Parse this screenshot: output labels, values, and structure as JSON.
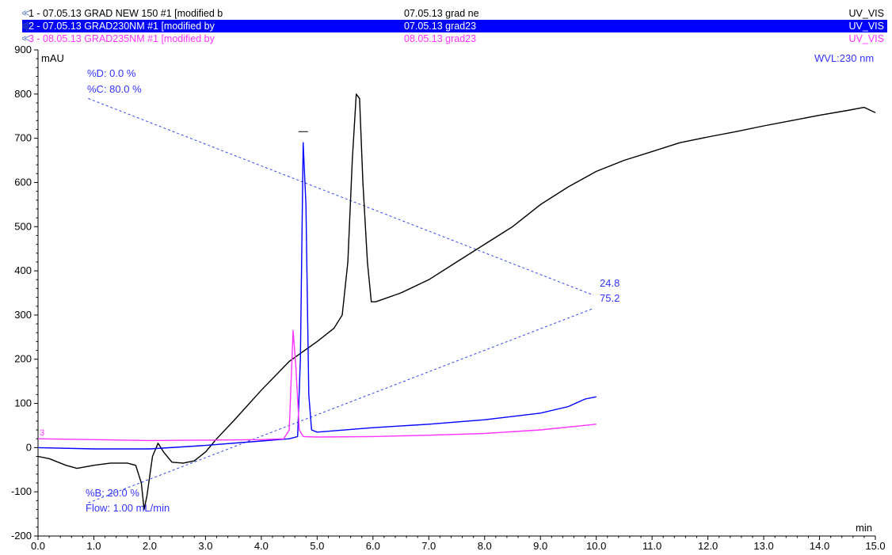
{
  "legend": [
    {
      "label": "1 - 07.05.13 GRAD NEW 150 #1 [modified b",
      "name": "07.05.13 grad ne",
      "detector": "UV_VIS",
      "color": "#000000"
    },
    {
      "label": "2 - 07.05.13 GRAD230NM #1 [modified by",
      "name": "07.05.13 grad23",
      "detector": "UV_VIS",
      "color": "#0000ff"
    },
    {
      "label": "3 - 08.05.13 GRAD235NM #1 [modified by",
      "name": "08.05.13 grad23",
      "detector": "UV_VIS",
      "color": "#ff33ff"
    }
  ],
  "annotations": {
    "y_unit": "mAU",
    "x_unit": "min",
    "wavelength": "WVL:230 nm",
    "percent_d": "%D: 0.0 %",
    "percent_c": "%C: 80.0 %",
    "percent_b": "%B: 20.0 %",
    "flow": "Flow: 1.00 mL/min",
    "end_upper": "24.8",
    "end_lower": "75.2",
    "trace_label_left": "3"
  },
  "chart_data": {
    "type": "line",
    "xlabel": "min",
    "ylabel": "mAU",
    "xlim": [
      0,
      15
    ],
    "ylim": [
      -200,
      900
    ],
    "x_ticks": [
      "0.0",
      "1.0",
      "2.0",
      "3.0",
      "4.0",
      "5.0",
      "6.0",
      "7.0",
      "8.0",
      "9.0",
      "10.0",
      "11.0",
      "12.0",
      "13.0",
      "14.0",
      "15.0"
    ],
    "y_ticks": [
      "900",
      "800",
      "700",
      "600",
      "500",
      "400",
      "300",
      "200",
      "100",
      "0",
      "-100",
      "-200"
    ],
    "series": [
      {
        "name": "1 - 07.05.13 GRAD NEW 150 #1",
        "color": "#000000",
        "points": [
          [
            0,
            -20
          ],
          [
            0.2,
            -25
          ],
          [
            0.5,
            -40
          ],
          [
            0.7,
            -47
          ],
          [
            1.0,
            -40
          ],
          [
            1.3,
            -35
          ],
          [
            1.6,
            -35
          ],
          [
            1.75,
            -40
          ],
          [
            1.85,
            -80
          ],
          [
            1.9,
            -140
          ],
          [
            1.95,
            -110
          ],
          [
            2.05,
            -20
          ],
          [
            2.15,
            10
          ],
          [
            2.25,
            -10
          ],
          [
            2.4,
            -33
          ],
          [
            2.6,
            -35
          ],
          [
            2.8,
            -30
          ],
          [
            3.0,
            -10
          ],
          [
            3.2,
            20
          ],
          [
            3.5,
            60
          ],
          [
            4.0,
            130
          ],
          [
            4.5,
            195
          ],
          [
            5.0,
            240
          ],
          [
            5.3,
            270
          ],
          [
            5.45,
            300
          ],
          [
            5.55,
            420
          ],
          [
            5.63,
            650
          ],
          [
            5.7,
            800
          ],
          [
            5.76,
            790
          ],
          [
            5.82,
            600
          ],
          [
            5.9,
            420
          ],
          [
            5.97,
            330
          ],
          [
            6.05,
            330
          ],
          [
            6.5,
            350
          ],
          [
            7.0,
            380
          ],
          [
            7.5,
            420
          ],
          [
            8.0,
            460
          ],
          [
            8.5,
            500
          ],
          [
            9.0,
            550
          ],
          [
            9.5,
            590
          ],
          [
            10.0,
            625
          ],
          [
            10.5,
            650
          ],
          [
            11.0,
            670
          ],
          [
            11.5,
            690
          ],
          [
            12.0,
            703
          ],
          [
            12.5,
            715
          ],
          [
            13.0,
            728
          ],
          [
            13.5,
            740
          ],
          [
            14.0,
            752
          ],
          [
            14.5,
            763
          ],
          [
            14.8,
            770
          ],
          [
            15.0,
            758
          ]
        ]
      },
      {
        "name": "2 - 07.05.13 GRAD230NM #1",
        "color": "#0000ff",
        "points": [
          [
            0,
            0
          ],
          [
            1.0,
            -3
          ],
          [
            2.0,
            -3
          ],
          [
            3.0,
            5
          ],
          [
            4.0,
            15
          ],
          [
            4.5,
            20
          ],
          [
            4.65,
            25
          ],
          [
            4.7,
            200
          ],
          [
            4.75,
            690
          ],
          [
            4.8,
            550
          ],
          [
            4.85,
            120
          ],
          [
            4.9,
            40
          ],
          [
            5.0,
            35
          ],
          [
            6.0,
            45
          ],
          [
            7.0,
            53
          ],
          [
            8.0,
            63
          ],
          [
            9.0,
            78
          ],
          [
            9.5,
            93
          ],
          [
            9.8,
            110
          ],
          [
            10.0,
            115
          ]
        ]
      },
      {
        "name": "3 - 08.05.13 GRAD235NM #1",
        "color": "#ff33ff",
        "points": [
          [
            0,
            20
          ],
          [
            1.0,
            18
          ],
          [
            2.0,
            16
          ],
          [
            3.0,
            17
          ],
          [
            4.0,
            18
          ],
          [
            4.4,
            20
          ],
          [
            4.5,
            40
          ],
          [
            4.57,
            265
          ],
          [
            4.62,
            180
          ],
          [
            4.68,
            40
          ],
          [
            4.75,
            25
          ],
          [
            5.0,
            24
          ],
          [
            6.0,
            25
          ],
          [
            7.0,
            28
          ],
          [
            8.0,
            32
          ],
          [
            9.0,
            40
          ],
          [
            10.0,
            53
          ]
        ]
      }
    ],
    "gradient_lines": [
      {
        "name": "%C",
        "points": [
          [
            0.9,
            790
          ],
          [
            9.95,
            345
          ]
        ]
      },
      {
        "name": "%B",
        "points": [
          [
            0.9,
            -125
          ],
          [
            9.95,
            315
          ]
        ]
      }
    ]
  }
}
